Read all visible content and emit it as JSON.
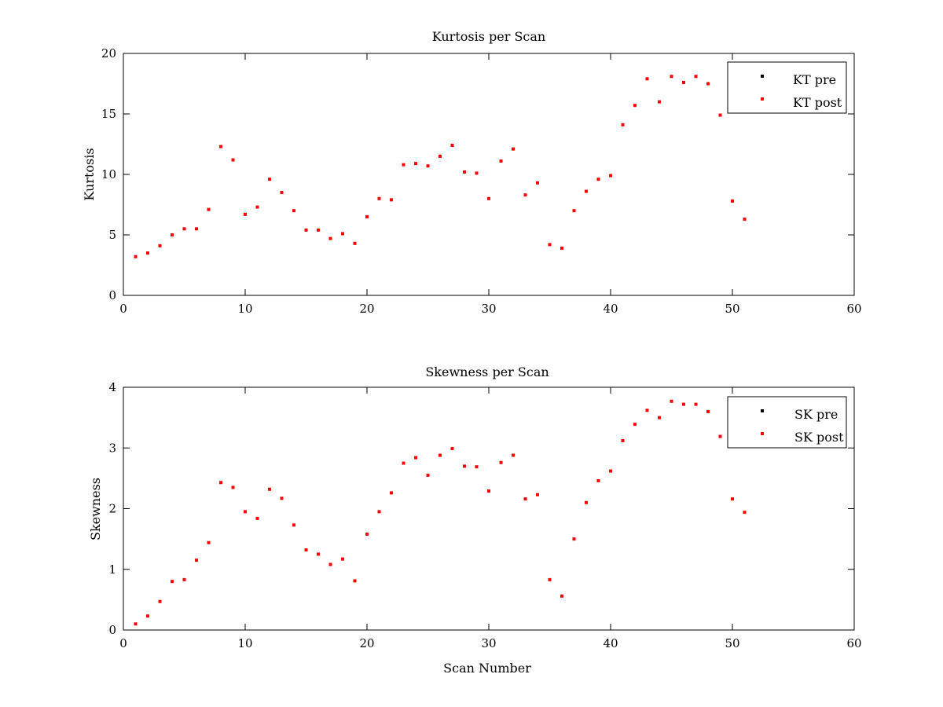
{
  "chart_data": [
    {
      "type": "scatter",
      "title": "Kurtosis per Scan",
      "xlabel": "",
      "ylabel": "Kurtosis",
      "xlim": [
        0,
        60
      ],
      "ylim": [
        0,
        20
      ],
      "xticks": [
        0,
        10,
        20,
        30,
        40,
        50,
        60
      ],
      "yticks": [
        0,
        5,
        10,
        15,
        20
      ],
      "legend_position": "top-right",
      "grid": false,
      "series": [
        {
          "name": "KT pre",
          "color": "#000000",
          "x": [],
          "y": []
        },
        {
          "name": "KT post",
          "color": "#ff0000",
          "x": [
            1,
            2,
            3,
            4,
            5,
            6,
            7,
            8,
            9,
            10,
            11,
            12,
            13,
            14,
            15,
            16,
            17,
            18,
            19,
            20,
            21,
            22,
            23,
            24,
            25,
            26,
            27,
            28,
            29,
            30,
            31,
            32,
            33,
            34,
            35,
            36,
            37,
            38,
            39,
            40,
            41,
            42,
            43,
            44,
            45,
            46,
            47,
            48,
            49,
            50,
            51
          ],
          "y": [
            3.2,
            3.5,
            4.1,
            5.0,
            5.5,
            5.5,
            7.1,
            12.3,
            11.2,
            6.7,
            7.3,
            9.6,
            8.5,
            7.0,
            5.4,
            5.4,
            4.7,
            5.1,
            4.3,
            6.5,
            8.0,
            7.9,
            10.8,
            10.9,
            10.7,
            11.5,
            12.4,
            10.2,
            10.1,
            8.0,
            11.1,
            12.1,
            8.3,
            9.3,
            4.2,
            3.9,
            7.0,
            8.6,
            9.6,
            9.9,
            14.1,
            15.7,
            17.9,
            16.0,
            18.1,
            17.6,
            18.1,
            17.5,
            14.9,
            7.8,
            6.3
          ]
        }
      ]
    },
    {
      "type": "scatter",
      "title": "Skewness per Scan",
      "xlabel": "Scan Number",
      "ylabel": "Skewness",
      "xlim": [
        0,
        60
      ],
      "ylim": [
        0,
        4
      ],
      "xticks": [
        0,
        10,
        20,
        30,
        40,
        50,
        60
      ],
      "yticks": [
        0,
        1,
        2,
        3,
        4
      ],
      "legend_position": "top-right",
      "grid": false,
      "series": [
        {
          "name": "SK pre",
          "color": "#000000",
          "x": [],
          "y": []
        },
        {
          "name": "SK post",
          "color": "#ff0000",
          "x": [
            1,
            2,
            3,
            4,
            5,
            6,
            7,
            8,
            9,
            10,
            11,
            12,
            13,
            14,
            15,
            16,
            17,
            18,
            19,
            20,
            21,
            22,
            23,
            24,
            25,
            26,
            27,
            28,
            29,
            30,
            31,
            32,
            33,
            34,
            35,
            36,
            37,
            38,
            39,
            40,
            41,
            42,
            43,
            44,
            45,
            46,
            47,
            48,
            49,
            50,
            51
          ],
          "y": [
            0.1,
            0.23,
            0.47,
            0.8,
            0.83,
            1.15,
            1.44,
            2.43,
            2.35,
            1.95,
            1.84,
            2.32,
            2.17,
            1.73,
            1.32,
            1.25,
            1.08,
            1.17,
            0.81,
            1.58,
            1.95,
            2.26,
            2.75,
            2.84,
            2.55,
            2.88,
            2.99,
            2.7,
            2.69,
            2.29,
            2.76,
            2.88,
            2.16,
            2.23,
            0.83,
            0.56,
            1.5,
            2.1,
            2.46,
            2.62,
            3.12,
            3.39,
            3.62,
            3.5,
            3.77,
            3.72,
            3.72,
            3.6,
            3.19,
            2.16,
            1.94
          ]
        }
      ]
    }
  ]
}
